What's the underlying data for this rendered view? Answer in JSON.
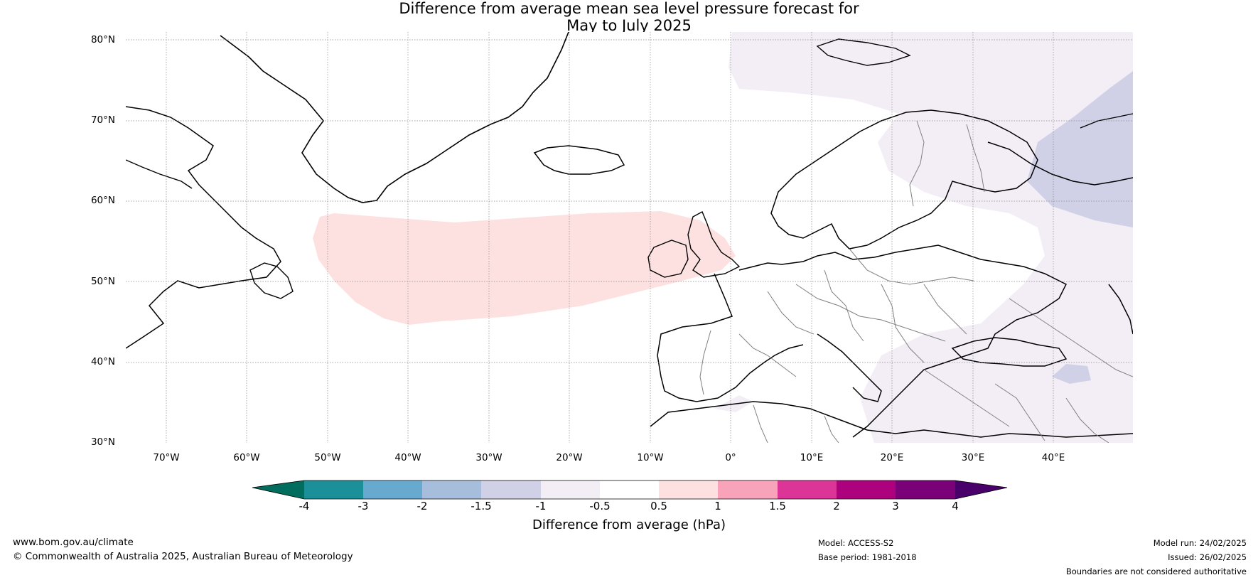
{
  "title": {
    "line1": "Difference from average mean sea level pressure forecast for",
    "line2": "May to July 2025"
  },
  "map": {
    "lat_labels": [
      "80°N",
      "70°N",
      "60°N",
      "50°N",
      "40°N",
      "30°N"
    ],
    "lon_labels": [
      "70°W",
      "60°W",
      "50°W",
      "40°W",
      "30°W",
      "20°W",
      "10°W",
      "0°",
      "10°E",
      "20°E",
      "30°E",
      "40°E"
    ],
    "anomaly_colors": {
      "positive_0_5_to_1": "#fde0e0",
      "negative_0_5_to_1": "#f3eef6",
      "negative_1_to_1_5": "#d0d1e6"
    },
    "coast_color": "#000000",
    "border_color": "#808080"
  },
  "colorbar": {
    "tick_labels": [
      "-4",
      "-3",
      "-2",
      "-1.5",
      "-1",
      "-0.5",
      "0.5",
      "1",
      "1.5",
      "2",
      "3",
      "4"
    ],
    "colors": [
      "#006d5e",
      "#1b9099",
      "#67a9cf",
      "#a6bddb",
      "#d0d1e6",
      "#f3eef6",
      "#ffffff",
      "#fde0e0",
      "#f9a3bb",
      "#dd3497",
      "#ae017e",
      "#7a0177",
      "#49006a"
    ],
    "label": "Difference from average (hPa)"
  },
  "footer": {
    "website": "www.bom.gov.au/climate",
    "copyright": "© Commonwealth of Australia 2025, Australian Bureau of Meteorology",
    "model": "Model: ACCESS-S2",
    "base_period": "Base period: 1981-2018",
    "model_run": "Model run: 24/02/2025",
    "issued": "Issued: 26/02/2025",
    "disclaimer": "Boundaries are not considered authoritative"
  }
}
